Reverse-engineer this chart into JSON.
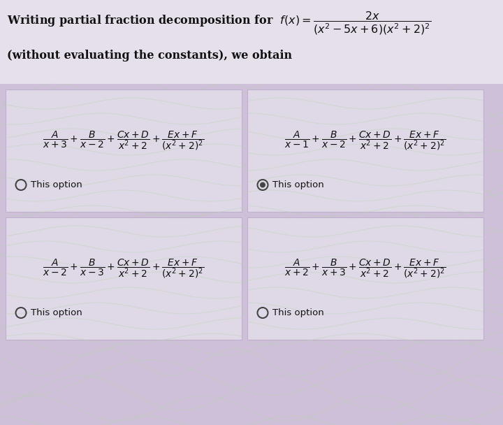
{
  "bg_color": "#cdc0d8",
  "header_bg": "#e8e4ec",
  "box_bg": "#e4e0ec",
  "box_border": "#b8aac8",
  "wave_color": "#b8d4b0",
  "text_color": "#111111",
  "radio_color": "#444444",
  "header_line1_plain": "Writing partial fraction decomposition for ",
  "header_formula": "$f(x) = \\dfrac{2x}{(x^2-5x+6)(x^2+2)^2}$",
  "header_line2": "(without evaluating the constants), we obtain",
  "options": [
    {
      "formula": "$\\dfrac{A}{x+3} + \\dfrac{B}{x-2} + \\dfrac{Cx+D}{x^2+2} + \\dfrac{Ex+F}{(x^2+2)^2}$",
      "radio_text": "This option",
      "selected": false,
      "row": 0,
      "col": 0
    },
    {
      "formula": "$\\dfrac{A}{x-1} + \\dfrac{B}{x-2} + \\dfrac{Cx+D}{x^2+2} + \\dfrac{Ex+F}{(x^2+2)^2}$",
      "radio_text": "This option",
      "selected": true,
      "row": 0,
      "col": 1
    },
    {
      "formula": "$\\dfrac{A}{x-2} + \\dfrac{B}{x-3} + \\dfrac{Cx+D}{x^2+2} + \\dfrac{Ex+F}{(x^2+2)^2}$",
      "radio_text": "This option",
      "selected": false,
      "row": 1,
      "col": 0
    },
    {
      "formula": "$\\dfrac{A}{x+2} + \\dfrac{B}{x+3} + \\dfrac{Cx+D}{x^2+2} + \\dfrac{Ex+F}{(x^2+2)^2}$",
      "radio_text": "This option",
      "selected": false,
      "row": 1,
      "col": 1
    }
  ]
}
